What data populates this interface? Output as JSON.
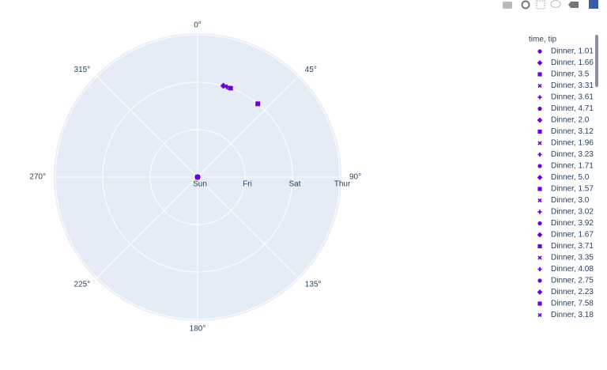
{
  "chart_data": {
    "type": "polar-scatter",
    "legend_title": "time, tip",
    "radial_categories": [
      "Sun",
      "Fri",
      "Sat",
      "Thur"
    ],
    "angular_ticks": [
      {
        "value": 0,
        "label": "0°"
      },
      {
        "value": 45,
        "label": "45°"
      },
      {
        "value": 90,
        "label": "90°"
      },
      {
        "value": 135,
        "label": "135°"
      },
      {
        "value": 180,
        "label": "180°"
      },
      {
        "value": 225,
        "label": "225°"
      },
      {
        "value": 270,
        "label": "270°"
      },
      {
        "value": 315,
        "label": "315°"
      }
    ],
    "grid": true,
    "series": [
      {
        "name": "Dinner, 1.01",
        "color": "#7000e0",
        "symbol": "circle",
        "r": [
          "Sun"
        ],
        "theta": [
          16.99
        ]
      },
      {
        "name": "Dinner, 1.66",
        "color": "#7000e0",
        "symbol": "diamond",
        "r": [
          "Sun"
        ],
        "theta": [
          10.34
        ]
      },
      {
        "name": "Dinner, 3.5",
        "color": "#7000e0",
        "symbol": "square",
        "r": [
          "Sun",
          "Sun"
        ],
        "theta": [
          21.01,
          16.97
        ]
      },
      {
        "name": "Dinner, 3.31",
        "color": "#7000e0",
        "symbol": "x",
        "r": [
          "Sun"
        ],
        "theta": [
          23.68
        ]
      },
      {
        "name": "Dinner, 3.61",
        "color": "#7000e0",
        "symbol": "cross",
        "r": [
          "Sun"
        ],
        "theta": [
          24.59
        ]
      },
      {
        "name": "Dinner, 4.71",
        "color": "#7000e0",
        "symbol": "circle",
        "r": [
          "Sun"
        ],
        "theta": [
          25.29
        ]
      },
      {
        "name": "Dinner, 2.0",
        "color": "#7000e0",
        "symbol": "diamond",
        "r": [
          "Sun"
        ],
        "theta": [
          8.77
        ]
      },
      {
        "name": "Dinner, 3.12",
        "color": "#7000e0",
        "symbol": "square",
        "r": [
          "Sun"
        ],
        "theta": [
          26.88
        ]
      },
      {
        "name": "Dinner, 1.96",
        "color": "#7000e0",
        "symbol": "x",
        "r": [
          "Sun"
        ],
        "theta": [
          15.04
        ]
      },
      {
        "name": "Dinner, 3.23",
        "color": "#7000e0",
        "symbol": "cross",
        "r": [
          "Sun"
        ],
        "theta": [
          14.78
        ]
      },
      {
        "name": "Dinner, 1.71",
        "color": "#7000e0",
        "symbol": "circle",
        "r": [
          "Sun"
        ],
        "theta": [
          10.27
        ]
      },
      {
        "name": "Dinner, 5.0",
        "color": "#7000e0",
        "symbol": "diamond",
        "r": [
          "Sun"
        ],
        "theta": [
          35.26
        ]
      },
      {
        "name": "Dinner, 1.57",
        "color": "#7000e0",
        "symbol": "square",
        "r": [
          "Sun"
        ],
        "theta": [
          15.42
        ]
      },
      {
        "name": "Dinner, 3.0",
        "color": "#7000e0",
        "symbol": "x",
        "r": [
          "Sun"
        ],
        "theta": [
          18.43
        ]
      },
      {
        "name": "Dinner, 3.02",
        "color": "#7000e0",
        "symbol": "cross",
        "r": [
          "Sun"
        ],
        "theta": [
          14.83
        ]
      },
      {
        "name": "Dinner, 3.92",
        "color": "#7000e0",
        "symbol": "circle",
        "r": [
          "Sun"
        ],
        "theta": [
          21.58
        ]
      },
      {
        "name": "Dinner, 1.67",
        "color": "#7000e0",
        "symbol": "diamond",
        "r": [
          "Sun"
        ],
        "theta": [
          10.33
        ]
      },
      {
        "name": "Dinner, 3.71",
        "color": "#7000e0",
        "symbol": "square",
        "r": [
          "Sun"
        ],
        "theta": [
          16.29
        ]
      },
      {
        "name": "Dinner, 3.35",
        "color": "#7000e0",
        "symbol": "x",
        "r": [
          "Sat"
        ],
        "theta": [
          20.65
        ]
      },
      {
        "name": "Dinner, 4.08",
        "color": "#7000e0",
        "symbol": "cross",
        "r": [
          "Sat"
        ],
        "theta": [
          17.92
        ]
      },
      {
        "name": "Dinner, 2.75",
        "color": "#7000e0",
        "symbol": "circle",
        "r": [
          "Sat"
        ],
        "theta": [
          20.29
        ]
      },
      {
        "name": "Dinner, 2.23",
        "color": "#7000e0",
        "symbol": "diamond",
        "r": [
          "Sat"
        ],
        "theta": [
          15.77
        ]
      },
      {
        "name": "Dinner, 7.58",
        "color": "#7000e0",
        "symbol": "square",
        "r": [
          "Sat"
        ],
        "theta": [
          39.42
        ]
      },
      {
        "name": "Dinner, 3.18",
        "color": "#7000e0",
        "symbol": "x",
        "r": [
          "Sat"
        ],
        "theta": [
          19.82
        ]
      }
    ]
  }
}
